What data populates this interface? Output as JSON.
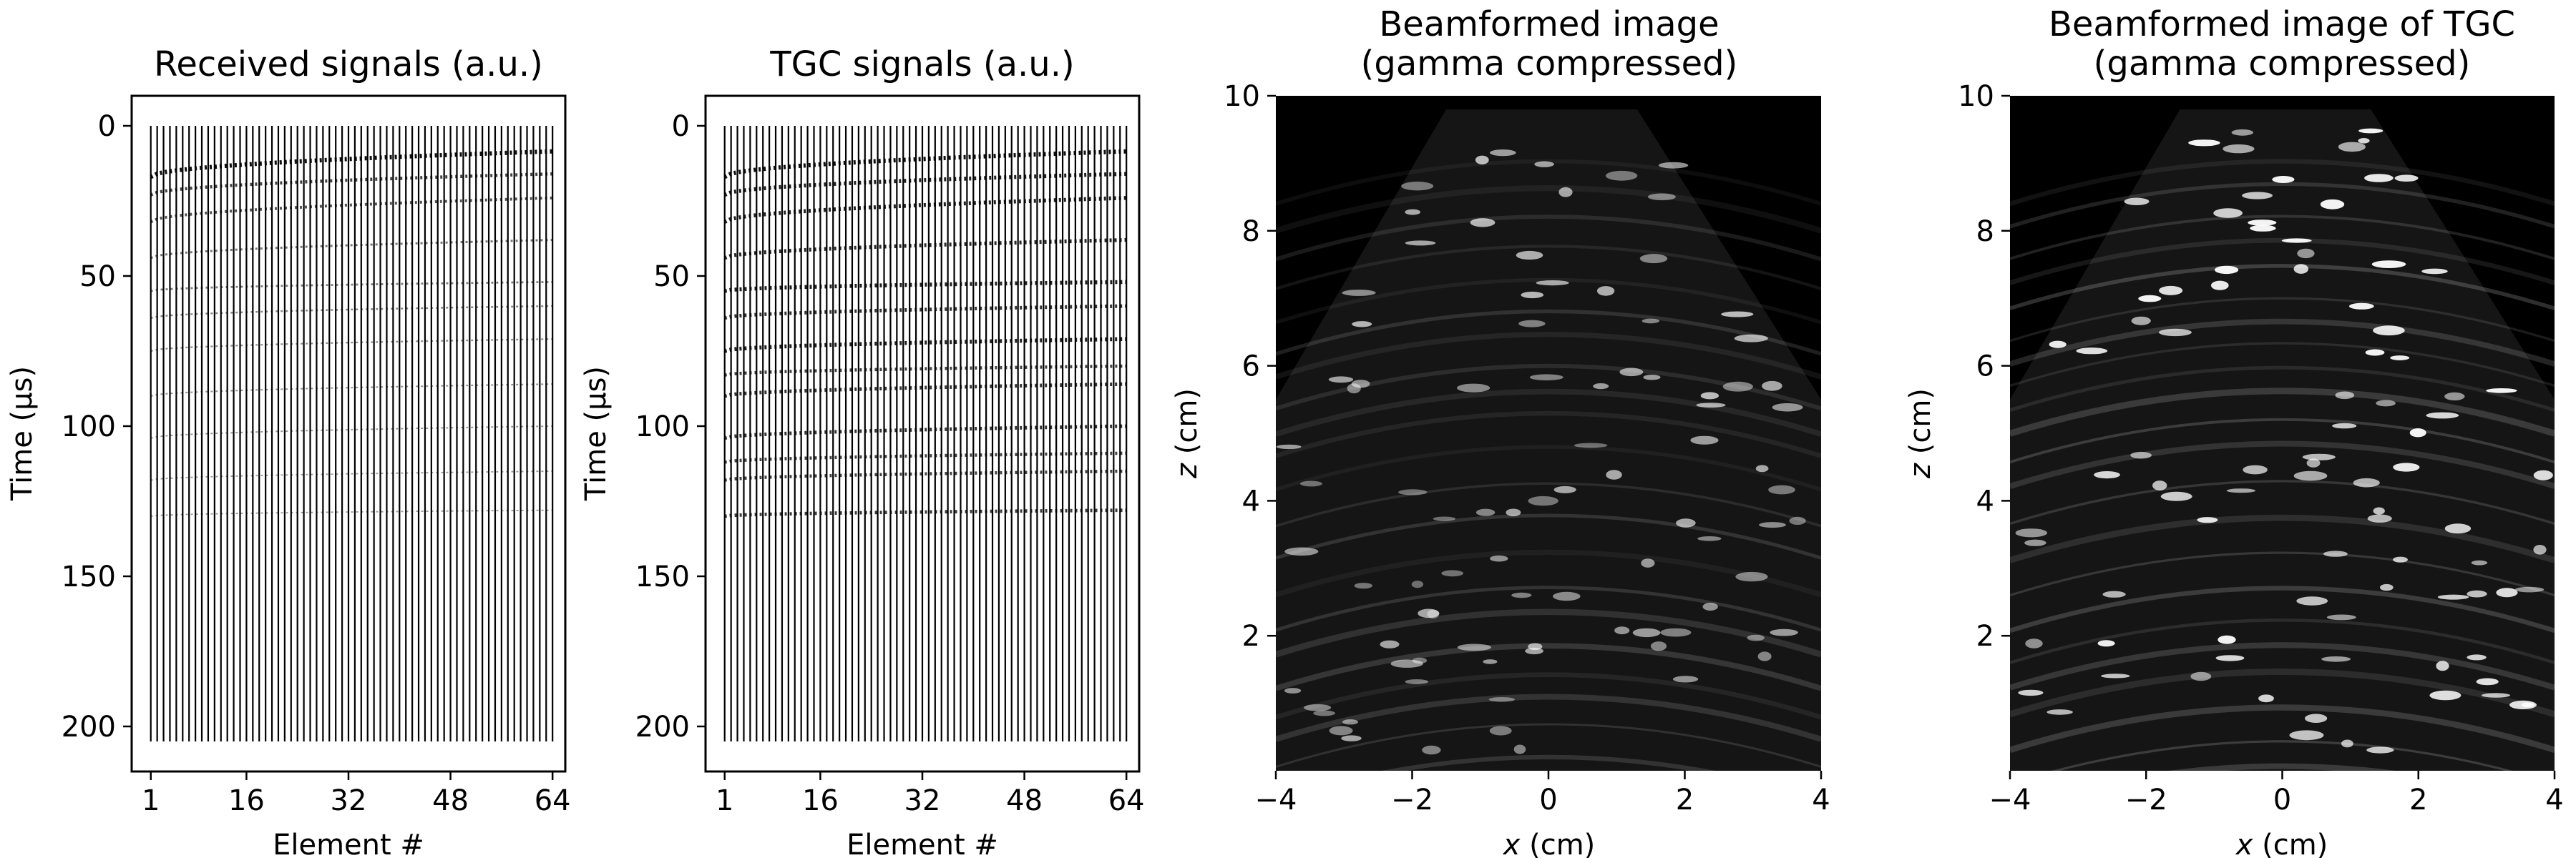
{
  "chart_data": [
    {
      "type": "line",
      "title": "Received signals (a.u.)",
      "xlabel": "Element #",
      "ylabel": "Time (µs)",
      "xticks": [
        "1",
        "16",
        "32",
        "48",
        "64"
      ],
      "yticks": [
        "0",
        "50",
        "100",
        "150",
        "200"
      ],
      "xlim": [
        -2,
        66
      ],
      "ylim": [
        215,
        -10
      ],
      "y_inverted": true,
      "num_elements": 64,
      "trace_time_range": [
        0,
        205
      ],
      "echo_times": [
        {
          "t0": 17,
          "t64": 8.5,
          "strength": 0.9
        },
        {
          "t0": 23,
          "t64": 16,
          "strength": 0.6
        },
        {
          "t0": 32,
          "t64": 24,
          "strength": 0.5
        },
        {
          "t0": 44,
          "t64": 38,
          "strength": 0.3
        },
        {
          "t0": 55,
          "t64": 52,
          "strength": 0.25
        },
        {
          "t0": 64,
          "t64": 60,
          "strength": 0.2
        },
        {
          "t0": 75,
          "t64": 71,
          "strength": 0.15
        },
        {
          "t0": 90,
          "t64": 86,
          "strength": 0.12
        },
        {
          "t0": 104,
          "t64": 100,
          "strength": 0.1
        },
        {
          "t0": 118,
          "t64": 115,
          "strength": 0.08
        },
        {
          "t0": 130,
          "t64": 128,
          "strength": 0.07
        }
      ]
    },
    {
      "type": "line",
      "title": "TGC signals (a.u.)",
      "xlabel": "Element #",
      "ylabel": "Time (µs)",
      "xticks": [
        "1",
        "16",
        "32",
        "48",
        "64"
      ],
      "yticks": [
        "0",
        "50",
        "100",
        "150",
        "200"
      ],
      "xlim": [
        -2,
        66
      ],
      "ylim": [
        215,
        -10
      ],
      "y_inverted": true,
      "num_elements": 64,
      "trace_time_range": [
        0,
        205
      ],
      "echo_times": [
        {
          "t0": 17,
          "t64": 8.5,
          "strength": 0.9
        },
        {
          "t0": 23,
          "t64": 16,
          "strength": 0.8
        },
        {
          "t0": 32,
          "t64": 24,
          "strength": 0.8
        },
        {
          "t0": 44,
          "t64": 38,
          "strength": 0.75
        },
        {
          "t0": 55,
          "t64": 52,
          "strength": 0.8
        },
        {
          "t0": 64,
          "t64": 60,
          "strength": 0.7
        },
        {
          "t0": 75,
          "t64": 71,
          "strength": 0.8
        },
        {
          "t0": 83,
          "t64": 80,
          "strength": 0.6
        },
        {
          "t0": 90,
          "t64": 86,
          "strength": 0.7
        },
        {
          "t0": 104,
          "t64": 100,
          "strength": 0.7
        },
        {
          "t0": 112,
          "t64": 109,
          "strength": 0.6
        },
        {
          "t0": 118,
          "t64": 115,
          "strength": 0.6
        },
        {
          "t0": 130,
          "t64": 128,
          "strength": 0.65
        }
      ]
    },
    {
      "type": "heatmap",
      "title_lines": [
        "Beamformed image",
        "(gamma compressed)"
      ],
      "xlabel_var": "x",
      "xlabel_unit": " (cm)",
      "ylabel_var": "z",
      "ylabel_unit": " (cm)",
      "xlim": [
        -4,
        4
      ],
      "ylim": [
        0,
        10
      ],
      "xticks": [
        "−4",
        "−2",
        "0",
        "2",
        "4"
      ],
      "yticks": [
        "2",
        "4",
        "6",
        "8",
        "10"
      ],
      "colormap": "gray",
      "sector": {
        "apex_top_left_x": -1.5,
        "apex_top_right_x": 1.3,
        "top_z": 9.8,
        "side_z": 5.5
      },
      "gain": 0.55
    },
    {
      "type": "heatmap",
      "title_lines": [
        "Beamformed image of TGC",
        "(gamma compressed)"
      ],
      "xlabel_var": "x",
      "xlabel_unit": " (cm)",
      "ylabel_var": "z",
      "ylabel_unit": " (cm)",
      "xlim": [
        -4,
        4
      ],
      "ylim": [
        0,
        10
      ],
      "xticks": [
        "−4",
        "−2",
        "0",
        "2",
        "4"
      ],
      "yticks": [
        "2",
        "4",
        "6",
        "8",
        "10"
      ],
      "colormap": "gray",
      "sector": {
        "apex_top_left_x": -1.5,
        "apex_top_right_x": 1.3,
        "top_z": 9.8,
        "side_z": 5.5
      },
      "gain": 1.0
    }
  ]
}
